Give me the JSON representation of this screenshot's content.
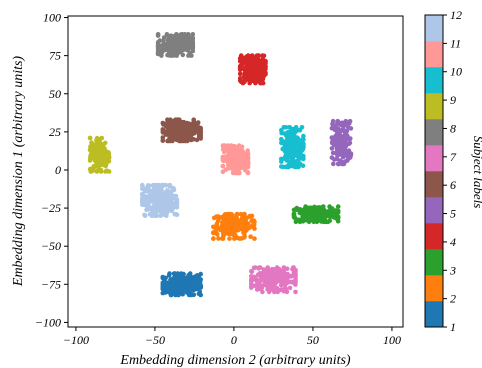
{
  "chart_data": {
    "type": "scatter",
    "xlabel": "Embedding dimension 2 (arbitrary units)",
    "ylabel": "Embedding dimension 1 (arbitrary units)",
    "xlim": [
      -105,
      107
    ],
    "ylim": [
      -103,
      101
    ],
    "xticks": [
      -100,
      -50,
      0,
      50,
      100
    ],
    "xtick_labels": [
      "−100",
      "−50",
      "0",
      "50",
      "100"
    ],
    "yticks": [
      100,
      75,
      50,
      25,
      0,
      -25,
      -50,
      -75,
      -100
    ],
    "ytick_labels": [
      "100",
      "75",
      "50",
      "25",
      "0",
      "−25",
      "−50",
      "−75",
      "−100"
    ],
    "grid": false,
    "colorbar": {
      "label": "Subject labels",
      "ticks": [
        "1",
        "2",
        "3",
        "4",
        "5",
        "6",
        "7",
        "8",
        "9",
        "10",
        "11",
        "12"
      ],
      "colors": [
        "#1f77b4",
        "#ff7f0e",
        "#2ca02c",
        "#d62728",
        "#9467bd",
        "#8c564b",
        "#e377c2",
        "#7f7f7f",
        "#bcbd22",
        "#17becf",
        "#ff9896",
        "#aec7e8"
      ]
    },
    "clusters": [
      {
        "subject": 1,
        "color": "#1f77b4",
        "center": [
          -33,
          -75
        ],
        "spread": [
          12,
          7
        ],
        "n": 260
      },
      {
        "subject": 2,
        "color": "#ff7f0e",
        "center": [
          0,
          -37
        ],
        "spread": [
          13,
          8
        ],
        "n": 200
      },
      {
        "subject": 3,
        "color": "#2ca02c",
        "center": [
          52,
          -29
        ],
        "spread": [
          14,
          5
        ],
        "n": 200
      },
      {
        "subject": 4,
        "color": "#d62728",
        "center": [
          12,
          66
        ],
        "spread": [
          8,
          9
        ],
        "n": 220
      },
      {
        "subject": 5,
        "color": "#9467bd",
        "center": [
          68,
          18
        ],
        "spread": [
          6,
          14
        ],
        "n": 170
      },
      {
        "subject": 6,
        "color": "#8c564b",
        "center": [
          -33,
          26
        ],
        "spread": [
          12,
          7
        ],
        "n": 210
      },
      {
        "subject": 7,
        "color": "#e377c2",
        "center": [
          25,
          -72
        ],
        "spread": [
          14,
          8
        ],
        "n": 190
      },
      {
        "subject": 8,
        "color": "#7f7f7f",
        "center": [
          -37,
          82
        ],
        "spread": [
          11,
          7
        ],
        "n": 210
      },
      {
        "subject": 9,
        "color": "#bcbd22",
        "center": [
          -85,
          10
        ],
        "spread": [
          6,
          11
        ],
        "n": 170
      },
      {
        "subject": 10,
        "color": "#17becf",
        "center": [
          37,
          15
        ],
        "spread": [
          7,
          13
        ],
        "n": 210
      },
      {
        "subject": 11,
        "color": "#ff9896",
        "center": [
          1,
          7
        ],
        "spread": [
          8,
          9
        ],
        "n": 200
      },
      {
        "subject": 12,
        "color": "#aec7e8",
        "center": [
          -47,
          -20
        ],
        "spread": [
          11,
          10
        ],
        "n": 280
      }
    ]
  }
}
